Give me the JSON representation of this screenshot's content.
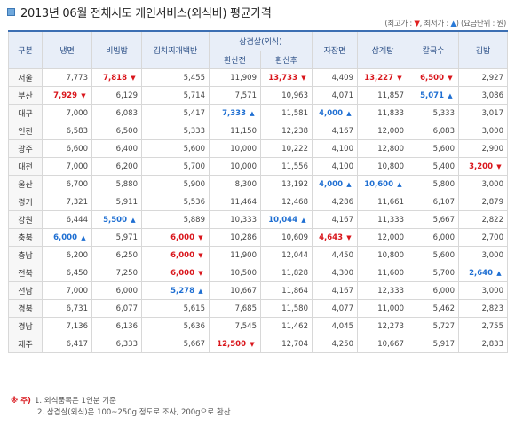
{
  "title": "2013년 06월 전체시도 개인서비스(외식비) 평균가격",
  "legend": {
    "open": "(최고가 :",
    "high_symbol": "▼",
    "sep": ", 최저가 :",
    "low_symbol": "▲",
    "rest": ") (요금단위 : 원)"
  },
  "table": {
    "header": {
      "region": "구분",
      "c1": "냉면",
      "c2": "비빔밥",
      "c3": "김치찌개백반",
      "c4": "삼겹살(외식)",
      "c4a": "환산전",
      "c4b": "환산후",
      "c5": "자장면",
      "c6": "삼계탕",
      "c7": "칼국수",
      "c8": "김밥"
    },
    "rows": [
      {
        "region": "서울",
        "v": [
          "7,773",
          "7,818",
          "5,455",
          "11,909",
          "13,733",
          "4,409",
          "13,227",
          "6,500",
          "2,927"
        ],
        "m": [
          "",
          "hi",
          "",
          "",
          "hi",
          "",
          "hi",
          "hi",
          ""
        ]
      },
      {
        "region": "부산",
        "v": [
          "7,929",
          "6,129",
          "5,714",
          "7,571",
          "10,963",
          "4,071",
          "11,857",
          "5,071",
          "3,086"
        ],
        "m": [
          "hi",
          "",
          "",
          "",
          "",
          "",
          "",
          "lo",
          ""
        ]
      },
      {
        "region": "대구",
        "v": [
          "7,000",
          "6,083",
          "5,417",
          "7,333",
          "11,581",
          "4,000",
          "11,833",
          "5,333",
          "3,017"
        ],
        "m": [
          "",
          "",
          "",
          "lo",
          "",
          "lo",
          "",
          "",
          ""
        ]
      },
      {
        "region": "인천",
        "v": [
          "6,583",
          "6,500",
          "5,333",
          "11,150",
          "12,238",
          "4,167",
          "12,000",
          "6,083",
          "3,000"
        ],
        "m": [
          "",
          "",
          "",
          "",
          "",
          "",
          "",
          "",
          ""
        ]
      },
      {
        "region": "광주",
        "v": [
          "6,600",
          "6,400",
          "5,600",
          "10,000",
          "10,222",
          "4,100",
          "12,800",
          "5,600",
          "2,900"
        ],
        "m": [
          "",
          "",
          "",
          "",
          "",
          "",
          "",
          "",
          ""
        ]
      },
      {
        "region": "대전",
        "v": [
          "7,000",
          "6,200",
          "5,700",
          "10,000",
          "11,556",
          "4,100",
          "10,800",
          "5,400",
          "3,200"
        ],
        "m": [
          "",
          "",
          "",
          "",
          "",
          "",
          "",
          "",
          "hi"
        ]
      },
      {
        "region": "울산",
        "v": [
          "6,700",
          "5,880",
          "5,900",
          "8,300",
          "13,192",
          "4,000",
          "10,600",
          "5,800",
          "3,000"
        ],
        "m": [
          "",
          "",
          "",
          "",
          "",
          "lo",
          "lo",
          "",
          ""
        ]
      },
      {
        "region": "경기",
        "v": [
          "7,321",
          "5,911",
          "5,536",
          "11,464",
          "12,468",
          "4,286",
          "11,661",
          "6,107",
          "2,879"
        ],
        "m": [
          "",
          "",
          "",
          "",
          "",
          "",
          "",
          "",
          ""
        ]
      },
      {
        "region": "강원",
        "v": [
          "6,444",
          "5,500",
          "5,889",
          "10,333",
          "10,044",
          "4,167",
          "11,333",
          "5,667",
          "2,822"
        ],
        "m": [
          "",
          "lo",
          "",
          "",
          "lo",
          "",
          "",
          "",
          ""
        ]
      },
      {
        "region": "충북",
        "v": [
          "6,000",
          "5,971",
          "6,000",
          "10,286",
          "10,609",
          "4,643",
          "12,000",
          "6,000",
          "2,700"
        ],
        "m": [
          "lo",
          "",
          "hi",
          "",
          "",
          "hi",
          "",
          "",
          ""
        ]
      },
      {
        "region": "충남",
        "v": [
          "6,200",
          "6,250",
          "6,000",
          "11,900",
          "12,044",
          "4,450",
          "10,800",
          "5,600",
          "3,000"
        ],
        "m": [
          "",
          "",
          "hi",
          "",
          "",
          "",
          "",
          "",
          ""
        ]
      },
      {
        "region": "전북",
        "v": [
          "6,450",
          "7,250",
          "6,000",
          "10,500",
          "11,828",
          "4,300",
          "11,600",
          "5,700",
          "2,640"
        ],
        "m": [
          "",
          "",
          "hi",
          "",
          "",
          "",
          "",
          "",
          "lo"
        ]
      },
      {
        "region": "전남",
        "v": [
          "7,000",
          "6,000",
          "5,278",
          "10,667",
          "11,864",
          "4,167",
          "12,333",
          "6,000",
          "3,000"
        ],
        "m": [
          "",
          "",
          "lo",
          "",
          "",
          "",
          "",
          "",
          ""
        ]
      },
      {
        "region": "경북",
        "v": [
          "6,731",
          "6,077",
          "5,615",
          "7,685",
          "11,580",
          "4,077",
          "11,000",
          "5,462",
          "2,823"
        ],
        "m": [
          "",
          "",
          "",
          "",
          "",
          "",
          "",
          "",
          ""
        ]
      },
      {
        "region": "경남",
        "v": [
          "7,136",
          "6,136",
          "5,636",
          "7,545",
          "11,462",
          "4,045",
          "12,273",
          "5,727",
          "2,755"
        ],
        "m": [
          "",
          "",
          "",
          "",
          "",
          "",
          "",
          "",
          ""
        ]
      },
      {
        "region": "제주",
        "v": [
          "6,417",
          "6,333",
          "5,667",
          "12,500",
          "12,704",
          "4,250",
          "10,667",
          "5,917",
          "2,833"
        ],
        "m": [
          "",
          "",
          "",
          "hi",
          "",
          "",
          "",
          "",
          ""
        ]
      }
    ]
  },
  "notes": {
    "mark": "※ 주)",
    "line1": "1. 외식품목은 1인분 기준",
    "line2": "2. 삼겹살(외식)은 100~250g 정도로 조사, 200g으로 환산"
  },
  "colors": {
    "high": "#d9161c",
    "low": "#1f6fd2",
    "header_bg": "#e8eef8"
  }
}
